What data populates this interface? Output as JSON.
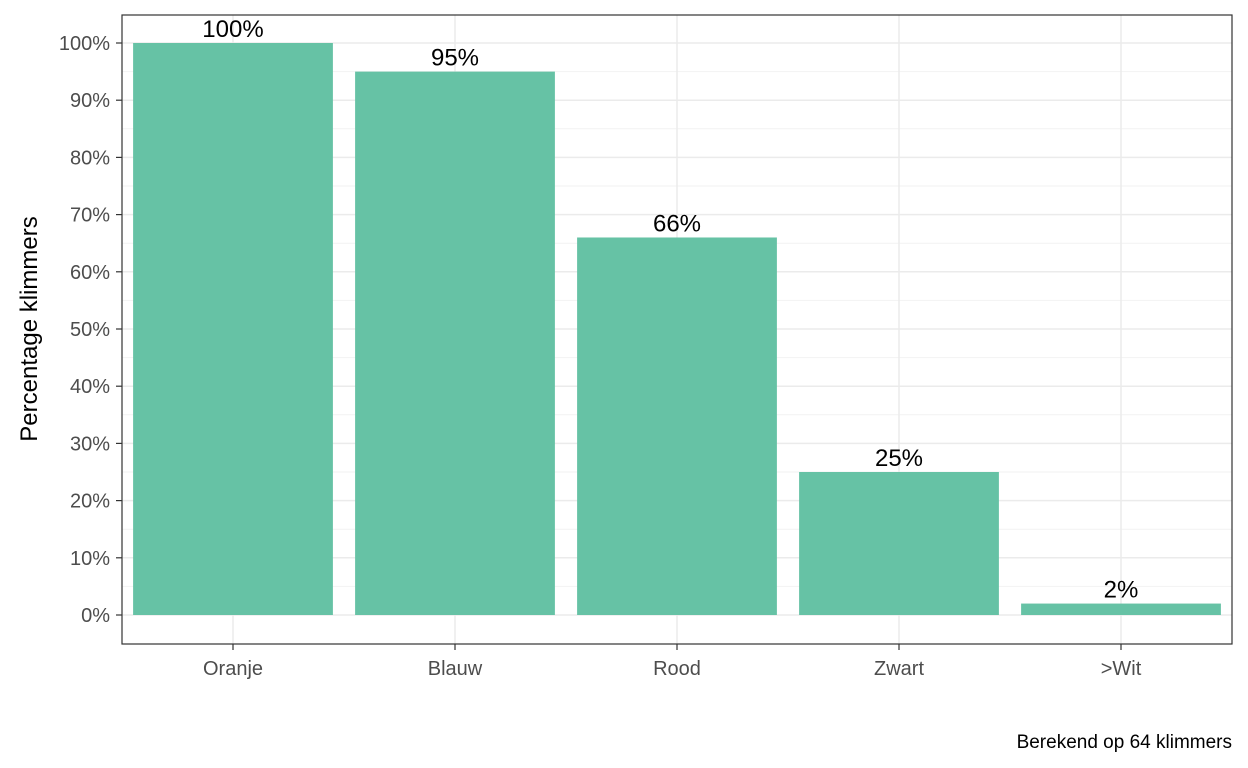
{
  "chart_data": {
    "type": "bar",
    "categories": [
      "Oranje",
      "Blauw",
      "Rood",
      "Zwart",
      ">Wit"
    ],
    "values": [
      100,
      95,
      66,
      25,
      2
    ],
    "labels": [
      "100%",
      "95%",
      "66%",
      "25%",
      "2%"
    ],
    "ylabel": "Percentage klimmers",
    "xlabel": "",
    "ylim": [
      0,
      105
    ],
    "yticks": [
      0,
      10,
      20,
      30,
      40,
      50,
      60,
      70,
      80,
      90,
      100
    ],
    "ytick_labels": [
      "0%",
      "10%",
      "20%",
      "30%",
      "40%",
      "50%",
      "60%",
      "70%",
      "80%",
      "90%",
      "100%"
    ],
    "caption": "Berekend op 64 klimmers",
    "grid": true,
    "bar_color": "#66c2a5"
  }
}
